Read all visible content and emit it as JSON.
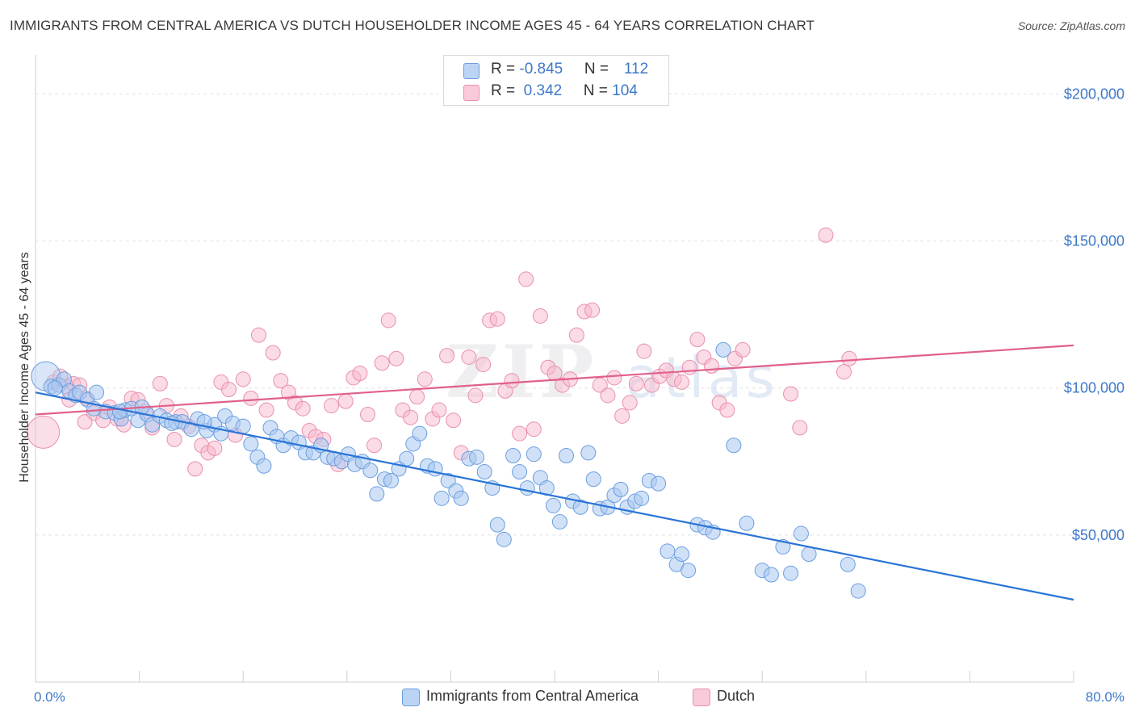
{
  "header": {
    "title": "IMMIGRANTS FROM CENTRAL AMERICA VS DUTCH HOUSEHOLDER INCOME AGES 45 - 64 YEARS CORRELATION CHART",
    "source": "Source: ZipAtlas.com"
  },
  "watermark": {
    "zip": "ZIP",
    "atlas": "atlas"
  },
  "legend": {
    "blue": {
      "r_label": "R = ",
      "r_value": "-0.845",
      "n_label": "N = ",
      "n_value": "112"
    },
    "pink": {
      "r_label": "R = ",
      "r_value": " 0.342",
      "n_label": "N = ",
      "n_value": "104"
    }
  },
  "bottom_legend": {
    "blue": "Immigrants from Central America",
    "pink": "Dutch"
  },
  "colors": {
    "blue_fill": "#a9c8f0",
    "blue_stroke": "#6a9ee0",
    "blue_line": "#2a74d6",
    "pink_fill": "#f7b8cc",
    "pink_stroke": "#e890ad",
    "pink_line": "#e0608a",
    "accent_text": "#3d78c9"
  },
  "chart_data": {
    "type": "scatter",
    "title": "IMMIGRANTS FROM CENTRAL AMERICA VS DUTCH HOUSEHOLDER INCOME AGES 45 - 64 YEARS CORRELATION CHART",
    "xlabel": "",
    "ylabel": "Householder Income Ages 45 - 64 years",
    "xlim": [
      0,
      80
    ],
    "ylim": [
      0,
      210000
    ],
    "x_tick_labels": [
      "0.0%",
      "80.0%"
    ],
    "y_ticks": [
      50000,
      100000,
      150000,
      200000
    ],
    "y_tick_labels": [
      "$50,000",
      "$100,000",
      "$150,000",
      "$200,000"
    ],
    "series": [
      {
        "name": "Immigrants from Central America",
        "r": -0.845,
        "n": 112,
        "trend": {
          "x": [
            0,
            80
          ],
          "y": [
            98500,
            28000
          ]
        },
        "points": [
          [
            0.8,
            104000
          ],
          [
            1.2,
            100500
          ],
          [
            1.8,
            101000
          ],
          [
            2.2,
            103000
          ],
          [
            2.6,
            99000
          ],
          [
            3.1,
            97500
          ],
          [
            3.4,
            98500
          ],
          [
            4.0,
            96000
          ],
          [
            4.7,
            98500
          ],
          [
            5.4,
            92000
          ],
          [
            6.1,
            91500
          ],
          [
            6.6,
            89500
          ],
          [
            6.9,
            92500
          ],
          [
            7.4,
            93000
          ],
          [
            7.9,
            89000
          ],
          [
            8.6,
            91000
          ],
          [
            9.0,
            87500
          ],
          [
            9.6,
            90500
          ],
          [
            10.1,
            89000
          ],
          [
            10.8,
            88500
          ],
          [
            11.3,
            88500
          ],
          [
            12.0,
            86000
          ],
          [
            12.5,
            89500
          ],
          [
            13.2,
            85500
          ],
          [
            13.8,
            87500
          ],
          [
            14.3,
            84500
          ],
          [
            14.6,
            90500
          ],
          [
            15.2,
            88000
          ],
          [
            16.0,
            87000
          ],
          [
            16.6,
            81000
          ],
          [
            17.1,
            76500
          ],
          [
            17.6,
            73500
          ],
          [
            18.1,
            86500
          ],
          [
            18.6,
            83500
          ],
          [
            19.1,
            80500
          ],
          [
            19.7,
            83000
          ],
          [
            20.3,
            81500
          ],
          [
            20.8,
            78000
          ],
          [
            21.4,
            78000
          ],
          [
            22.0,
            80500
          ],
          [
            22.5,
            76500
          ],
          [
            23.0,
            76000
          ],
          [
            23.6,
            75000
          ],
          [
            24.1,
            77500
          ],
          [
            24.6,
            74000
          ],
          [
            25.2,
            75000
          ],
          [
            25.8,
            72000
          ],
          [
            26.3,
            64000
          ],
          [
            26.9,
            69000
          ],
          [
            27.4,
            68500
          ],
          [
            28.0,
            72500
          ],
          [
            28.6,
            76000
          ],
          [
            29.1,
            81000
          ],
          [
            29.6,
            84500
          ],
          [
            30.2,
            73500
          ],
          [
            30.8,
            72500
          ],
          [
            31.3,
            62500
          ],
          [
            31.8,
            68500
          ],
          [
            32.4,
            65000
          ],
          [
            32.8,
            62500
          ],
          [
            33.4,
            76000
          ],
          [
            34.0,
            76500
          ],
          [
            34.6,
            71500
          ],
          [
            35.2,
            66000
          ],
          [
            35.6,
            53500
          ],
          [
            36.1,
            48500
          ],
          [
            36.8,
            77000
          ],
          [
            37.3,
            71500
          ],
          [
            37.9,
            66000
          ],
          [
            38.4,
            77500
          ],
          [
            38.9,
            69500
          ],
          [
            39.4,
            66000
          ],
          [
            39.9,
            60000
          ],
          [
            40.4,
            54500
          ],
          [
            40.9,
            77000
          ],
          [
            41.4,
            61500
          ],
          [
            42.0,
            59500
          ],
          [
            42.6,
            78000
          ],
          [
            43.0,
            69000
          ],
          [
            43.5,
            59000
          ],
          [
            44.1,
            59500
          ],
          [
            44.6,
            63500
          ],
          [
            45.1,
            65500
          ],
          [
            45.6,
            59500
          ],
          [
            46.2,
            61500
          ],
          [
            46.7,
            62500
          ],
          [
            47.3,
            68500
          ],
          [
            48.0,
            67500
          ],
          [
            48.7,
            44500
          ],
          [
            49.4,
            40000
          ],
          [
            49.8,
            43500
          ],
          [
            50.3,
            38000
          ],
          [
            51.0,
            53500
          ],
          [
            51.6,
            52500
          ],
          [
            52.2,
            51000
          ],
          [
            53.0,
            113000
          ],
          [
            53.8,
            80500
          ],
          [
            54.8,
            54000
          ],
          [
            56.0,
            38000
          ],
          [
            56.7,
            36500
          ],
          [
            57.6,
            46000
          ],
          [
            58.2,
            37000
          ],
          [
            59.0,
            50500
          ],
          [
            59.6,
            43500
          ],
          [
            1.5,
            100000
          ],
          [
            4.5,
            93000
          ],
          [
            6.5,
            92000
          ],
          [
            8.2,
            93500
          ],
          [
            10.5,
            88000
          ],
          [
            13.0,
            88500
          ],
          [
            62.6,
            40000
          ],
          [
            63.4,
            31000
          ]
        ]
      },
      {
        "name": "Dutch",
        "r": 0.342,
        "n": 104,
        "trend": {
          "x": [
            0,
            80
          ],
          "y": [
            91000,
            114500
          ]
        },
        "points": [
          [
            0.6,
            85000
          ],
          [
            1.4,
            102000
          ],
          [
            1.9,
            104000
          ],
          [
            2.4,
            100500
          ],
          [
            2.9,
            101500
          ],
          [
            3.4,
            101000
          ],
          [
            3.9,
            96500
          ],
          [
            4.5,
            91500
          ],
          [
            5.2,
            89000
          ],
          [
            5.7,
            93500
          ],
          [
            6.3,
            89500
          ],
          [
            6.8,
            87500
          ],
          [
            7.4,
            96500
          ],
          [
            7.9,
            96000
          ],
          [
            8.5,
            92000
          ],
          [
            9.0,
            86500
          ],
          [
            9.6,
            101500
          ],
          [
            10.1,
            94000
          ],
          [
            10.7,
            82500
          ],
          [
            11.2,
            90500
          ],
          [
            11.8,
            87000
          ],
          [
            12.3,
            72500
          ],
          [
            12.8,
            80500
          ],
          [
            13.3,
            78000
          ],
          [
            13.8,
            79500
          ],
          [
            14.3,
            102000
          ],
          [
            14.9,
            99500
          ],
          [
            15.4,
            84000
          ],
          [
            16.0,
            103000
          ],
          [
            16.6,
            96500
          ],
          [
            17.2,
            118000
          ],
          [
            17.8,
            92500
          ],
          [
            18.3,
            112000
          ],
          [
            18.9,
            102500
          ],
          [
            19.5,
            98500
          ],
          [
            20.0,
            95000
          ],
          [
            20.6,
            93000
          ],
          [
            21.1,
            85500
          ],
          [
            21.6,
            83500
          ],
          [
            22.2,
            82500
          ],
          [
            22.8,
            94000
          ],
          [
            23.3,
            74000
          ],
          [
            23.9,
            95500
          ],
          [
            24.5,
            103500
          ],
          [
            25.0,
            105000
          ],
          [
            25.6,
            91000
          ],
          [
            26.1,
            80500
          ],
          [
            26.7,
            108500
          ],
          [
            27.2,
            123000
          ],
          [
            27.8,
            110000
          ],
          [
            28.3,
            92500
          ],
          [
            28.9,
            90000
          ],
          [
            29.4,
            97000
          ],
          [
            30.0,
            103000
          ],
          [
            30.6,
            89500
          ],
          [
            31.1,
            92500
          ],
          [
            31.7,
            111000
          ],
          [
            32.2,
            89000
          ],
          [
            32.8,
            78000
          ],
          [
            33.4,
            110500
          ],
          [
            33.9,
            97500
          ],
          [
            34.5,
            108000
          ],
          [
            35.0,
            123000
          ],
          [
            35.6,
            123500
          ],
          [
            36.2,
            99000
          ],
          [
            36.7,
            102500
          ],
          [
            37.3,
            84500
          ],
          [
            37.8,
            137000
          ],
          [
            38.4,
            86000
          ],
          [
            38.9,
            124500
          ],
          [
            39.5,
            107000
          ],
          [
            40.0,
            105000
          ],
          [
            40.6,
            101000
          ],
          [
            41.2,
            103000
          ],
          [
            41.7,
            118000
          ],
          [
            42.3,
            126000
          ],
          [
            42.9,
            126500
          ],
          [
            43.5,
            101000
          ],
          [
            44.1,
            97500
          ],
          [
            44.6,
            103500
          ],
          [
            45.2,
            90500
          ],
          [
            45.8,
            95000
          ],
          [
            46.3,
            101500
          ],
          [
            46.9,
            112500
          ],
          [
            47.5,
            101000
          ],
          [
            48.1,
            104000
          ],
          [
            48.6,
            106000
          ],
          [
            49.2,
            103000
          ],
          [
            49.8,
            102000
          ],
          [
            50.4,
            107000
          ],
          [
            51.0,
            116500
          ],
          [
            51.5,
            110500
          ],
          [
            52.1,
            107500
          ],
          [
            52.7,
            95000
          ],
          [
            53.3,
            92500
          ],
          [
            53.9,
            110000
          ],
          [
            54.5,
            113000
          ],
          [
            58.2,
            98000
          ],
          [
            58.9,
            86500
          ],
          [
            60.9,
            152000
          ],
          [
            62.3,
            105500
          ],
          [
            62.7,
            110000
          ],
          [
            2.6,
            96000
          ],
          [
            3.8,
            88500
          ]
        ]
      }
    ]
  }
}
